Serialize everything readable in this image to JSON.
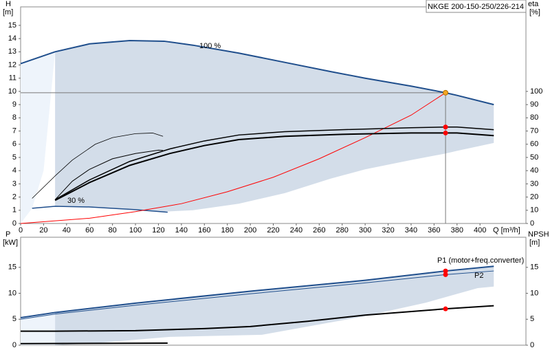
{
  "title": "NKGE 200-150-250/226-214",
  "chart_data": [
    {
      "type": "line",
      "y_label": "H",
      "y_unit": "[m]",
      "y2_label": "eta",
      "y2_unit": "[%]",
      "x_label": "Q [m³/h]",
      "xlim": [
        0,
        440
      ],
      "ylim": [
        0,
        16.4
      ],
      "y2lim": [
        0,
        164
      ],
      "xticks": [
        0,
        20,
        40,
        60,
        80,
        100,
        120,
        140,
        160,
        180,
        200,
        220,
        240,
        260,
        280,
        300,
        320,
        340,
        360,
        380,
        400
      ],
      "yticks": [
        0,
        1,
        2,
        3,
        4,
        5,
        6,
        7,
        8,
        9,
        10,
        11,
        12,
        13,
        14,
        15
      ],
      "y2ticks": [
        0,
        10,
        20,
        30,
        40,
        50,
        60,
        70,
        80,
        90,
        100
      ],
      "bands": [
        {
          "color": "#eef4fb",
          "x": [
            0,
            10,
            20,
            30
          ],
          "upper": [
            12.1,
            12.4,
            12.7,
            13.0
          ],
          "lower": [
            0,
            1.15,
            4,
            13.0
          ]
        },
        {
          "color": "#d3dde9",
          "x": [
            30,
            60,
            95,
            125,
            150,
            190,
            230,
            270,
            300,
            340,
            370,
            380,
            412
          ],
          "upper": [
            13.0,
            13.6,
            13.85,
            13.8,
            13.5,
            12.9,
            12.2,
            11.5,
            11.0,
            10.4,
            9.9,
            9.7,
            9.0
          ],
          "lower": [
            1.3,
            1.25,
            1.1,
            0.9,
            1.0,
            1.5,
            2.3,
            3.4,
            4.1,
            4.8,
            5.3,
            5.5,
            6.1
          ]
        }
      ],
      "series": [
        {
          "name": "100 %",
          "color": "#1f4e8c",
          "width": 2,
          "axis": "y",
          "x": [
            0,
            30,
            60,
            95,
            125,
            150,
            190,
            230,
            270,
            300,
            340,
            370,
            380,
            412
          ],
          "values": [
            12.1,
            13.0,
            13.6,
            13.85,
            13.8,
            13.5,
            12.9,
            12.2,
            11.5,
            11.0,
            10.4,
            9.9,
            9.7,
            9.0
          ]
        },
        {
          "name": "30 %",
          "color": "#1f4e8c",
          "width": 1.5,
          "axis": "y",
          "x": [
            10,
            30,
            60,
            100,
            128
          ],
          "values": [
            1.15,
            1.3,
            1.25,
            1.05,
            0.85
          ]
        },
        {
          "color": "#ff0000",
          "width": 1,
          "axis": "y",
          "x": [
            0,
            60,
            100,
            140,
            180,
            220,
            260,
            300,
            340,
            370
          ],
          "values": [
            0,
            0.4,
            0.9,
            1.5,
            2.4,
            3.5,
            4.9,
            6.5,
            8.2,
            9.9
          ]
        },
        {
          "color": "#000000",
          "width": 2,
          "axis": "y2",
          "x": [
            30,
            60,
            95,
            130,
            160,
            190,
            230,
            280,
            340,
            370,
            380,
            412
          ],
          "values": [
            17.5,
            31,
            44,
            53,
            59,
            63.5,
            66,
            67.5,
            68.5,
            68.5,
            68.5,
            66.5
          ]
        },
        {
          "color": "#000000",
          "width": 1.5,
          "axis": "y2",
          "x": [
            30,
            60,
            95,
            130,
            160,
            190,
            230,
            280,
            340,
            370,
            380,
            412
          ],
          "values": [
            18,
            33,
            47,
            56.5,
            62.5,
            67,
            69.5,
            71,
            72.5,
            73,
            73,
            71
          ]
        },
        {
          "color": "#000000",
          "width": 0.8,
          "axis": "y2",
          "x": [
            10,
            30,
            45,
            65,
            80,
            100,
            115,
            124
          ],
          "values": [
            19,
            36,
            48,
            60,
            65,
            68,
            68.5,
            66
          ]
        },
        {
          "color": "#000000",
          "width": 1,
          "axis": "y2",
          "x": [
            30,
            45,
            60,
            80,
            100,
            120,
            124
          ],
          "values": [
            18,
            32,
            41,
            49,
            53,
            55.5,
            55.3
          ]
        }
      ],
      "markers": [
        {
          "color": "#f5a623",
          "axis": "y",
          "x": 370,
          "y": 9.9,
          "guide": true
        },
        {
          "color": "#ff0000",
          "axis": "y2",
          "x": 370,
          "y": 73
        },
        {
          "color": "#ff0000",
          "axis": "y2",
          "x": 370,
          "y": 68.5
        }
      ]
    },
    {
      "type": "line",
      "y_label": "P",
      "y_unit": "[kW]",
      "y2_label": "NPSH",
      "y2_unit": "[m]",
      "xlim": [
        0,
        440
      ],
      "ylim": [
        0,
        20.8
      ],
      "y2lim": [
        0,
        20.8
      ],
      "yticks": [
        0,
        5,
        10,
        15
      ],
      "y2ticks": [
        0,
        5,
        10,
        15
      ],
      "bands": [
        {
          "color": "#eef4fb",
          "x": [
            0,
            15,
            30
          ],
          "upper": [
            5.3,
            5.8,
            6.3
          ],
          "lower": [
            0,
            0,
            0
          ]
        },
        {
          "color": "#d3dde9",
          "x": [
            30,
            60,
            130,
            210,
            250,
            300,
            353,
            398,
            412
          ],
          "upper": [
            6.3,
            7.1,
            8.9,
            10.6,
            11.5,
            12.5,
            13.9,
            14.9,
            15.2
          ],
          "lower": [
            0,
            0.3,
            1.6,
            2.0,
            3.6,
            5.6,
            8.2,
            11,
            11.3
          ]
        }
      ],
      "series": [
        {
          "name": "P1 (motor+freq.converter)",
          "color": "#1f4e8c",
          "width": 2,
          "axis": "y",
          "x": [
            0,
            30,
            100,
            200,
            300,
            370,
            412
          ],
          "values": [
            5.3,
            6.3,
            8.1,
            10.4,
            12.5,
            14.3,
            15.2
          ]
        },
        {
          "name": "P2",
          "color": "#1f4e8c",
          "width": 1,
          "axis": "y",
          "x": [
            0,
            30,
            100,
            200,
            300,
            370,
            412
          ],
          "values": [
            5.0,
            6.0,
            7.7,
            9.9,
            12.0,
            13.6,
            14.3
          ]
        },
        {
          "color": "#000000",
          "width": 2,
          "axis": "y2",
          "x": [
            0,
            30,
            100,
            160,
            200,
            250,
            300,
            370,
            412
          ],
          "values": [
            2.7,
            2.7,
            2.8,
            3.2,
            3.6,
            4.6,
            5.8,
            7.0,
            7.6
          ]
        },
        {
          "color": "#000000",
          "width": 2,
          "axis": "y2",
          "x": [
            0,
            128
          ],
          "values": [
            0.3,
            0.4
          ]
        }
      ],
      "markers": [
        {
          "color": "#ff0000",
          "axis": "y",
          "x": 370,
          "y": 14.3
        },
        {
          "color": "#ff0000",
          "axis": "y",
          "x": 370,
          "y": 13.6
        },
        {
          "color": "#ff0000",
          "axis": "y2",
          "x": 370,
          "y": 7.0
        }
      ]
    }
  ]
}
